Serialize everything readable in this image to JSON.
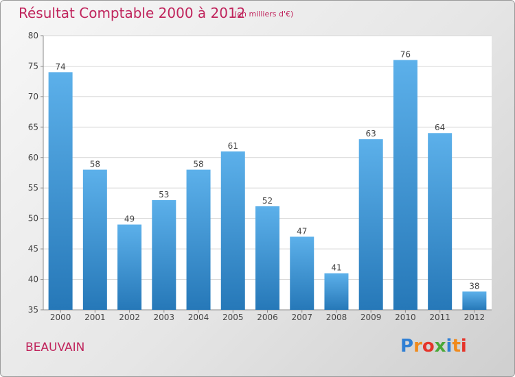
{
  "title": "Résultat Comptable 2000 à 2012",
  "subtitle": "(en milliers d'€)",
  "city": "BEAUVAIN",
  "brand": {
    "letters": [
      "P",
      "r",
      "o",
      "x",
      "i",
      "t",
      "i"
    ],
    "colors": [
      "#2f7fd4",
      "#f08a1c",
      "#e5342a",
      "#4aa838",
      "#2f7fd4",
      "#f08a1c",
      "#e5342a"
    ]
  },
  "colors": {
    "bar_light": "#5cb0ea",
    "bar_dark": "#2678b8",
    "title": "#c0245c"
  },
  "chart_data": {
    "type": "bar",
    "categories": [
      "2000",
      "2001",
      "2002",
      "2003",
      "2004",
      "2005",
      "2006",
      "2007",
      "2008",
      "2009",
      "2010",
      "2011",
      "2012"
    ],
    "values": [
      74,
      58,
      49,
      53,
      58,
      61,
      52,
      47,
      41,
      63,
      76,
      64,
      38
    ],
    "ylim": [
      35,
      80
    ],
    "yticks": [
      35,
      40,
      45,
      50,
      55,
      60,
      65,
      70,
      75,
      80
    ],
    "grid": true
  }
}
